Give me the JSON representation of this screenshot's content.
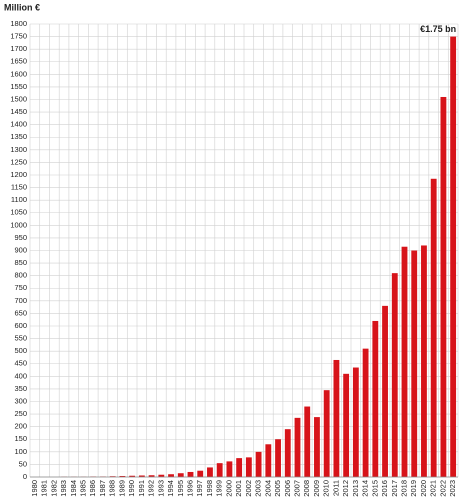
{
  "chart_data": {
    "type": "bar",
    "y_label": "Million €",
    "annotation": "€1.75 bn",
    "categories": [
      "1980",
      "1981",
      "1982",
      "1983",
      "1984",
      "1985",
      "1986",
      "1987",
      "1988",
      "1989",
      "1990",
      "1991",
      "1992",
      "1993",
      "1994",
      "1995",
      "1996",
      "1997",
      "1998",
      "1999",
      "2000",
      "2001",
      "2002",
      "2003",
      "2004",
      "2005",
      "2006",
      "2007",
      "2008",
      "2009",
      "2010",
      "2011",
      "2012",
      "2013",
      "2014",
      "2015",
      "2016",
      "2017",
      "2018",
      "2019",
      "2020",
      "2021",
      "2022",
      "2023"
    ],
    "values": [
      0,
      0,
      0,
      1,
      1,
      1,
      2,
      2,
      3,
      4,
      5,
      6,
      7,
      9,
      11,
      15,
      20,
      25,
      38,
      55,
      62,
      75,
      78,
      100,
      130,
      150,
      190,
      235,
      280,
      238,
      345,
      465,
      410,
      435,
      510,
      620,
      680,
      810,
      915,
      900,
      920,
      1185,
      1510,
      1750
    ],
    "color": "#d7141a",
    "ylim": [
      0,
      1800
    ],
    "yticks": [
      0,
      50,
      100,
      150,
      200,
      250,
      300,
      350,
      400,
      450,
      500,
      550,
      600,
      650,
      700,
      750,
      800,
      850,
      900,
      950,
      1000,
      1050,
      1100,
      1150,
      1200,
      1250,
      1300,
      1350,
      1400,
      1450,
      1500,
      1550,
      1600,
      1650,
      1700,
      1750,
      1800
    ],
    "grid": true
  }
}
